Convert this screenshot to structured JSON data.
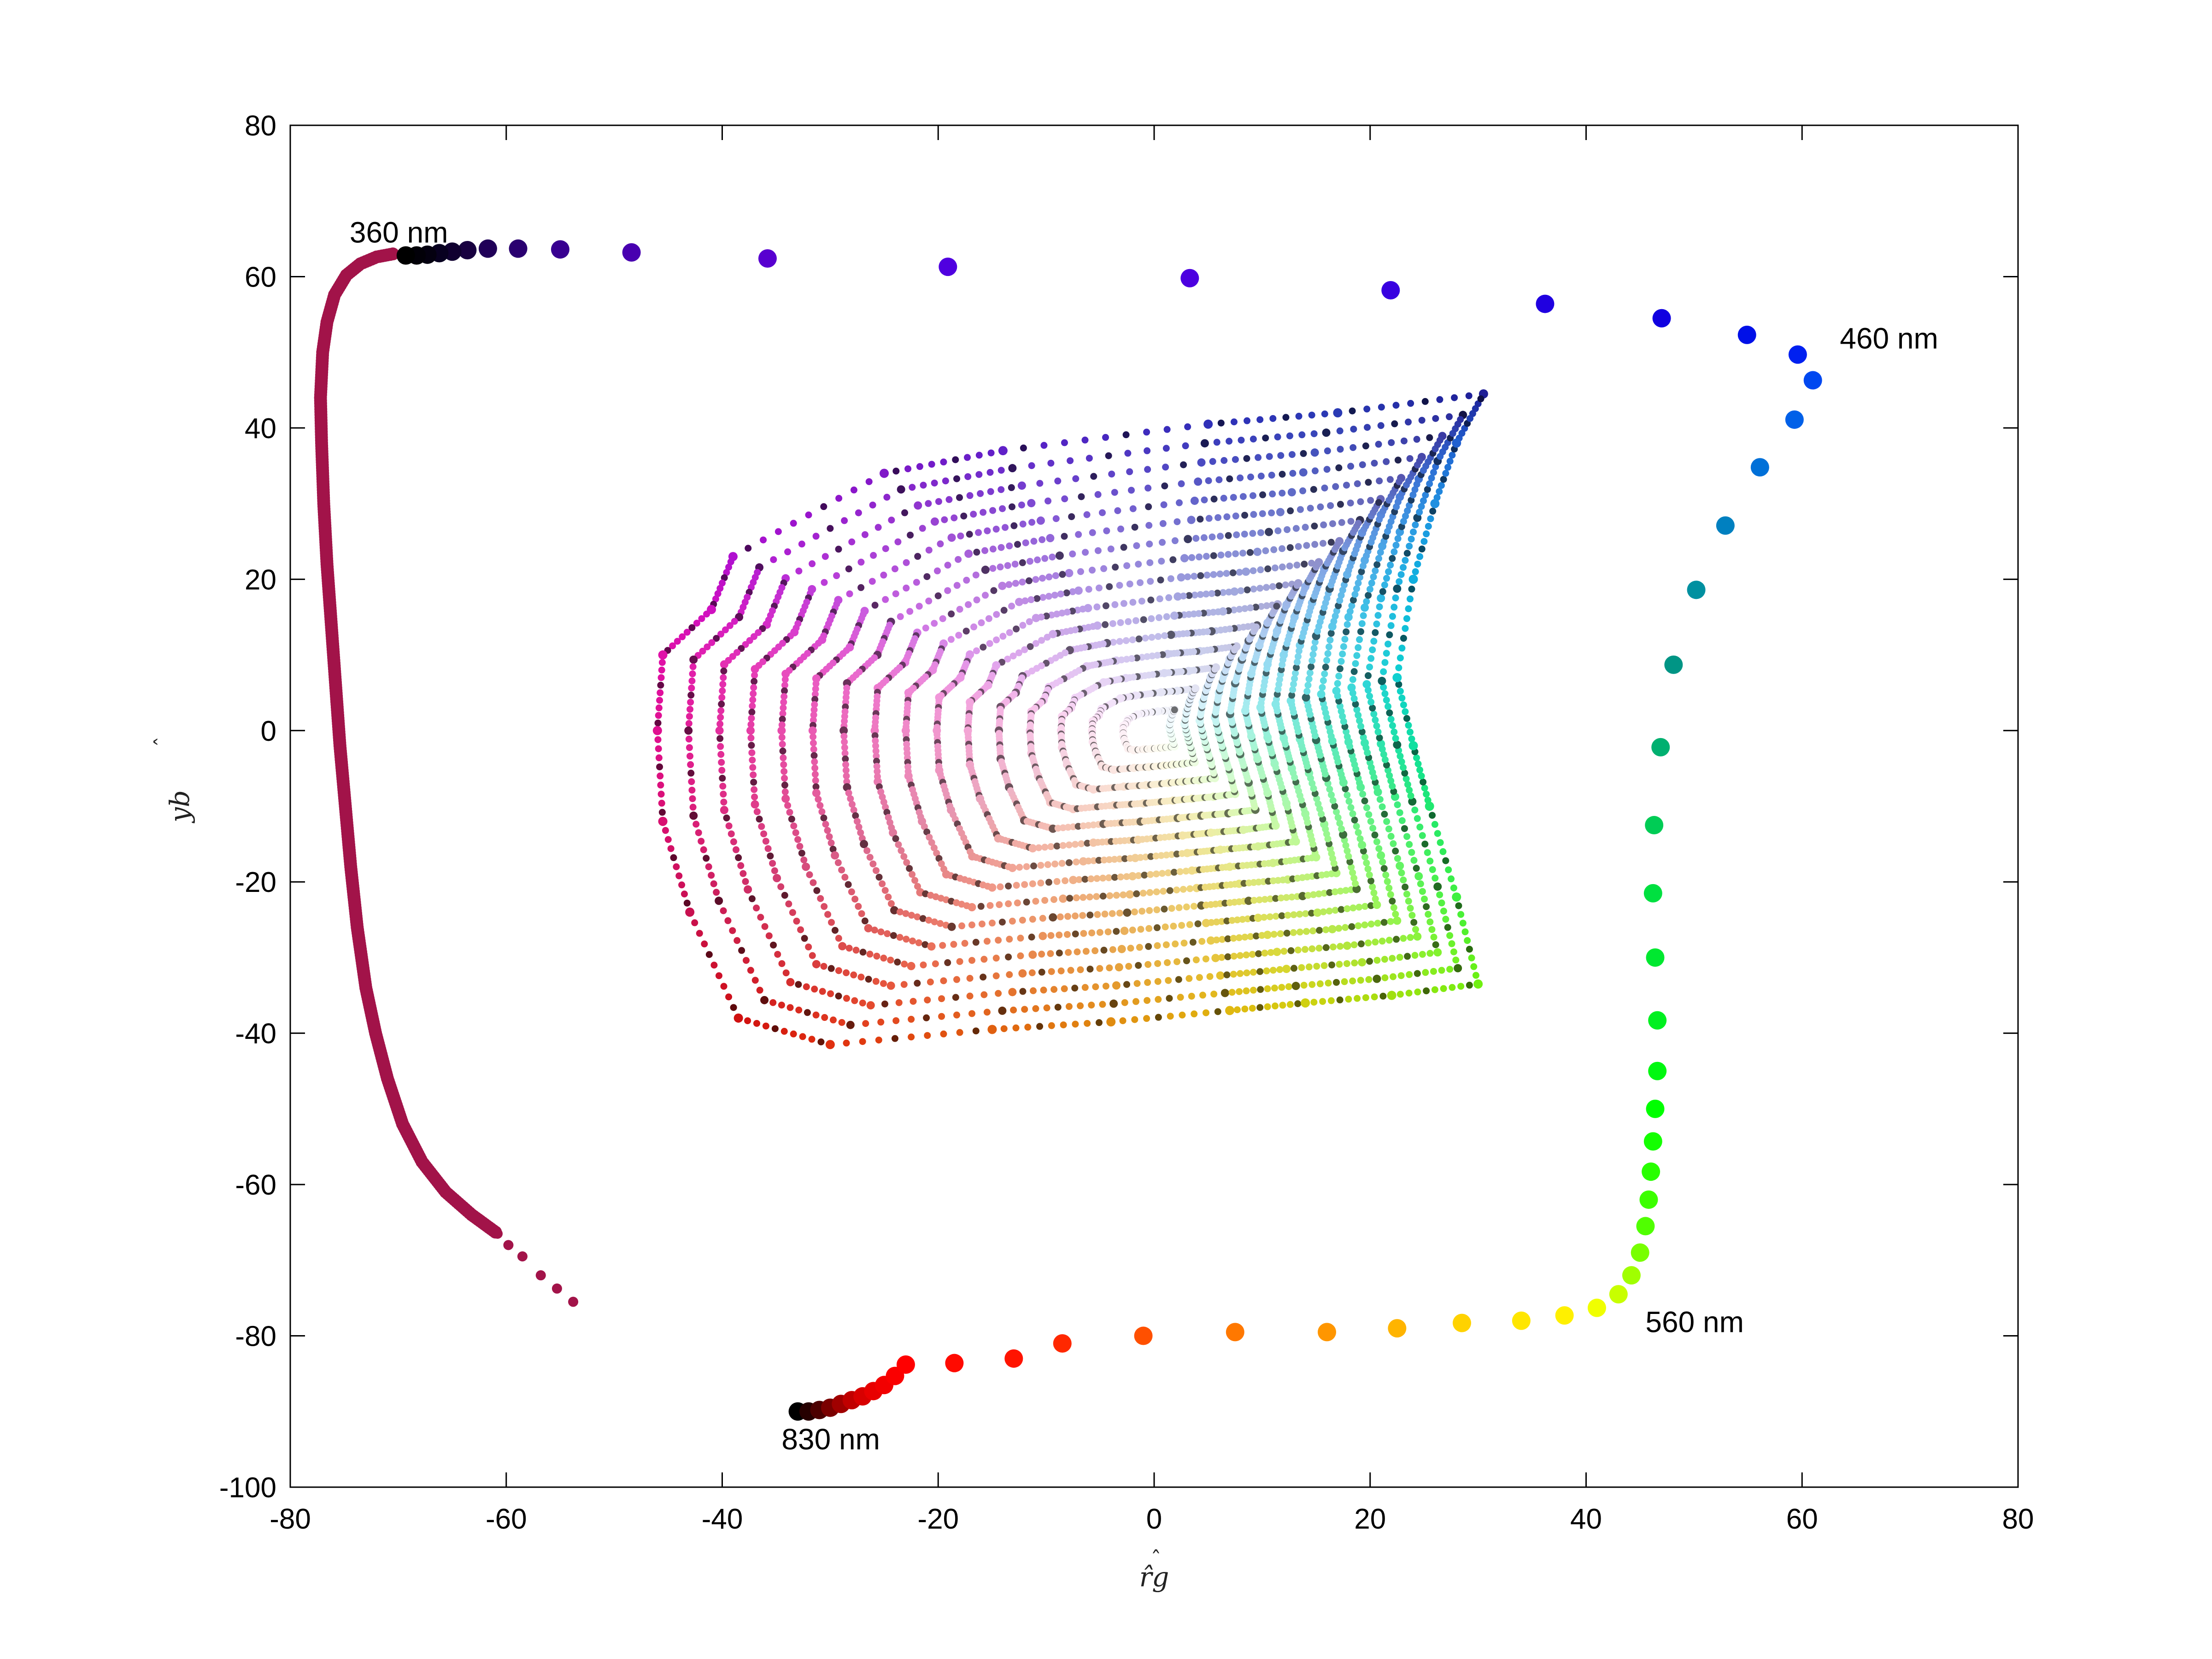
{
  "chart_data": {
    "type": "scatter",
    "title": "",
    "xlabel": "r̂g",
    "ylabel": "yb",
    "xlabel_hat": "ˆ",
    "ylabel_hat": "ˆ",
    "xlim": [
      -80,
      80
    ],
    "ylim": [
      -100,
      80
    ],
    "grid": false,
    "xticks": [
      -80,
      -60,
      -40,
      -20,
      0,
      20,
      40,
      60,
      80
    ],
    "yticks": [
      -100,
      -80,
      -60,
      -40,
      -20,
      0,
      20,
      40,
      60,
      80
    ],
    "xtick_labels": [
      "-80",
      "-60",
      "-40",
      "-20",
      "0",
      "20",
      "40",
      "60",
      "80"
    ],
    "ytick_labels": [
      "-100",
      "-80",
      "-60",
      "-40",
      "-20",
      "0",
      "20",
      "40",
      "60",
      "80"
    ],
    "annotations": [
      {
        "text": "360 nm",
        "x": -74.5,
        "y": 64.5
      },
      {
        "text": "460 nm",
        "x": 63.5,
        "y": 50.5
      },
      {
        "text": "560 nm",
        "x": 45.5,
        "y": -79.5
      },
      {
        "text": "830 nm",
        "x": -34.5,
        "y": -95
      }
    ],
    "series": [
      {
        "name": "spectral locus",
        "points": [
          {
            "x": -33,
            "y": -90,
            "color": "#000000"
          },
          {
            "x": -32,
            "y": -90,
            "color": "#260000"
          },
          {
            "x": -31,
            "y": -89.8,
            "color": "#4c0000"
          },
          {
            "x": -30,
            "y": -89.5,
            "color": "#7a0000"
          },
          {
            "x": -29,
            "y": -89,
            "color": "#a00000"
          },
          {
            "x": -28,
            "y": -88.5,
            "color": "#c00000"
          },
          {
            "x": -27,
            "y": -88,
            "color": "#d80000"
          },
          {
            "x": -26,
            "y": -87.3,
            "color": "#e80000"
          },
          {
            "x": -25,
            "y": -86.5,
            "color": "#f20000"
          },
          {
            "x": -24,
            "y": -85.3,
            "color": "#fa0000"
          },
          {
            "x": -23,
            "y": -83.8,
            "color": "#ff0000"
          },
          {
            "x": -18.5,
            "y": -83.6,
            "color": "#ff0a00"
          },
          {
            "x": -13,
            "y": -83,
            "color": "#ff1400"
          },
          {
            "x": -8.5,
            "y": -81,
            "color": "#ff2800"
          },
          {
            "x": -1,
            "y": -80,
            "color": "#ff5000"
          },
          {
            "x": 7.5,
            "y": -79.5,
            "color": "#ff7800"
          },
          {
            "x": 16,
            "y": -79.5,
            "color": "#ff9600"
          },
          {
            "x": 22.5,
            "y": -79,
            "color": "#ffb400"
          },
          {
            "x": 28.5,
            "y": -78.3,
            "color": "#ffd200"
          },
          {
            "x": 34,
            "y": -78,
            "color": "#ffe600"
          },
          {
            "x": 38,
            "y": -77.3,
            "color": "#fff000"
          },
          {
            "x": 41,
            "y": -76.3,
            "color": "#f0ff00"
          },
          {
            "x": 43,
            "y": -74.5,
            "color": "#c8ff00"
          },
          {
            "x": 44.2,
            "y": -72,
            "color": "#a0ff00"
          },
          {
            "x": 45,
            "y": -69,
            "color": "#78ff00"
          },
          {
            "x": 45.5,
            "y": -65.5,
            "color": "#50ff00"
          },
          {
            "x": 45.8,
            "y": -62,
            "color": "#3cff00"
          },
          {
            "x": 46,
            "y": -58.3,
            "color": "#28ff00"
          },
          {
            "x": 46.2,
            "y": -54.3,
            "color": "#14ff00"
          },
          {
            "x": 46.4,
            "y": -50,
            "color": "#00ff00"
          },
          {
            "x": 46.6,
            "y": -45,
            "color": "#00f810"
          },
          {
            "x": 46.6,
            "y": -38.3,
            "color": "#00f020"
          },
          {
            "x": 46.4,
            "y": -30,
            "color": "#00e830"
          },
          {
            "x": 46.2,
            "y": -21.5,
            "color": "#00e040"
          },
          {
            "x": 46.3,
            "y": -12.5,
            "color": "#00cc55"
          },
          {
            "x": 46.9,
            "y": -2.2,
            "color": "#00b070"
          },
          {
            "x": 48.1,
            "y": 8.7,
            "color": "#009585"
          },
          {
            "x": 50.2,
            "y": 18.6,
            "color": "#0090a0"
          },
          {
            "x": 52.9,
            "y": 27.1,
            "color": "#0080c0"
          },
          {
            "x": 56.1,
            "y": 34.8,
            "color": "#0070d8"
          },
          {
            "x": 59.3,
            "y": 41.1,
            "color": "#0060e8"
          },
          {
            "x": 61,
            "y": 46.3,
            "color": "#0048f0"
          },
          {
            "x": 59.6,
            "y": 49.7,
            "color": "#0020f0"
          },
          {
            "x": 54.9,
            "y": 52.3,
            "color": "#0010e8"
          },
          {
            "x": 47,
            "y": 54.5,
            "color": "#1000e0"
          },
          {
            "x": 36.2,
            "y": 56.4,
            "color": "#2000e0"
          },
          {
            "x": 21.9,
            "y": 58.2,
            "color": "#3800e0"
          },
          {
            "x": 3.3,
            "y": 59.8,
            "color": "#4c00e0"
          },
          {
            "x": -19.1,
            "y": 61.3,
            "color": "#5000e0"
          },
          {
            "x": -35.8,
            "y": 62.4,
            "color": "#5800d0"
          },
          {
            "x": -48.4,
            "y": 63.2,
            "color": "#4800b0"
          },
          {
            "x": -55,
            "y": 63.6,
            "color": "#380090"
          },
          {
            "x": -58.9,
            "y": 63.7,
            "color": "#2a0070"
          },
          {
            "x": -61.7,
            "y": 63.7,
            "color": "#200058"
          },
          {
            "x": -63.6,
            "y": 63.5,
            "color": "#180040"
          },
          {
            "x": -65,
            "y": 63.3,
            "color": "#100030"
          },
          {
            "x": -66.2,
            "y": 63.1,
            "color": "#080020"
          },
          {
            "x": -67.3,
            "y": 62.9,
            "color": "#040010"
          },
          {
            "x": -68.3,
            "y": 62.8,
            "color": "#020008"
          },
          {
            "x": -69.3,
            "y": 62.8,
            "color": "#000000"
          }
        ]
      },
      {
        "name": "purple line",
        "color": "#a21349",
        "points": [
          {
            "x": -70.5,
            "y": 63
          },
          {
            "x": -72,
            "y": 62.6
          },
          {
            "x": -73.5,
            "y": 61.7
          },
          {
            "x": -74.8,
            "y": 60.2
          },
          {
            "x": -75.9,
            "y": 57.6
          },
          {
            "x": -76.6,
            "y": 54
          },
          {
            "x": -77,
            "y": 50
          },
          {
            "x": -77.2,
            "y": 44
          },
          {
            "x": -77.1,
            "y": 38
          },
          {
            "x": -76.9,
            "y": 30
          },
          {
            "x": -76.6,
            "y": 22
          },
          {
            "x": -76.2,
            "y": 14
          },
          {
            "x": -75.8,
            "y": 6
          },
          {
            "x": -75.4,
            "y": -2
          },
          {
            "x": -74.9,
            "y": -10
          },
          {
            "x": -74.4,
            "y": -18
          },
          {
            "x": -73.8,
            "y": -26
          },
          {
            "x": -73,
            "y": -34
          },
          {
            "x": -72.1,
            "y": -40
          },
          {
            "x": -71,
            "y": -46
          },
          {
            "x": -69.6,
            "y": -52
          },
          {
            "x": -67.8,
            "y": -57
          },
          {
            "x": -65.6,
            "y": -61
          },
          {
            "x": -63.2,
            "y": -64
          },
          {
            "x": -60.8,
            "y": -66.5
          },
          {
            "x": -59.8,
            "y": -68
          },
          {
            "x": -58.5,
            "y": -69.5
          },
          {
            "x": -56.8,
            "y": -72
          },
          {
            "x": -53.8,
            "y": -75.5
          }
        ]
      }
    ],
    "gamut_surface": {
      "description": "dense cloud of colored points",
      "center": {
        "x": 0,
        "y": 0,
        "color": "#ffffff"
      },
      "rays": [
        {
          "x": 30.5,
          "y": 44.5,
          "color": "#1e1e96"
        },
        {
          "x": 17,
          "y": 42,
          "color": "#2a3ab4"
        },
        {
          "x": 5,
          "y": 40.5,
          "color": "#3030b8"
        },
        {
          "x": -14,
          "y": 37,
          "color": "#6020c8"
        },
        {
          "x": -25,
          "y": 34,
          "color": "#8018c8"
        },
        {
          "x": -39,
          "y": 23,
          "color": "#b010d0"
        },
        {
          "x": -41,
          "y": 16,
          "color": "#d010c0"
        },
        {
          "x": -45.5,
          "y": 10,
          "color": "#e010a8"
        },
        {
          "x": -46,
          "y": 0,
          "color": "#e01090"
        },
        {
          "x": -45.5,
          "y": -12,
          "color": "#d81070"
        },
        {
          "x": -43,
          "y": -24,
          "color": "#c81050"
        },
        {
          "x": -38.5,
          "y": -38,
          "color": "#d01010"
        },
        {
          "x": -30,
          "y": -41.5,
          "color": "#e03010"
        },
        {
          "x": -15,
          "y": -39.5,
          "color": "#e06010"
        },
        {
          "x": -4,
          "y": -38.5,
          "color": "#e08c10"
        },
        {
          "x": 7,
          "y": -37,
          "color": "#e0b810"
        },
        {
          "x": 14,
          "y": -36,
          "color": "#d0d010"
        },
        {
          "x": 22,
          "y": -35,
          "color": "#a0e010"
        },
        {
          "x": 30,
          "y": -33.5,
          "color": "#70f010"
        },
        {
          "x": 28,
          "y": -22,
          "color": "#40f040"
        },
        {
          "x": 25.5,
          "y": -10,
          "color": "#20e870"
        },
        {
          "x": 24,
          "y": -2,
          "color": "#10e0a0"
        },
        {
          "x": 22.5,
          "y": 7,
          "color": "#10d0d0"
        },
        {
          "x": 24,
          "y": 20,
          "color": "#10b0e0"
        },
        {
          "x": 26,
          "y": 30,
          "color": "#2090e0"
        },
        {
          "x": 28,
          "y": 38,
          "color": "#2060d0"
        }
      ]
    }
  }
}
